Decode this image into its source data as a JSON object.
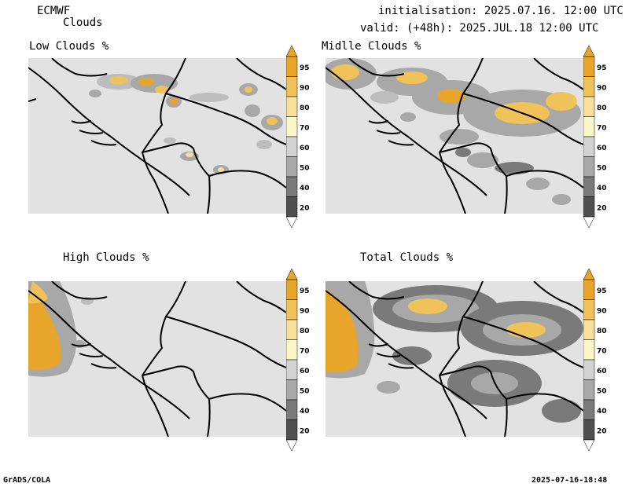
{
  "header": {
    "model": "ECMWF",
    "product": "Clouds",
    "initialisation": "initialisation: 2025.07.16. 12:00 UTC",
    "valid": "valid: (+48h): 2025.JUL.18 12:00 UTC"
  },
  "panels": [
    {
      "title": "Low Clouds %"
    },
    {
      "title": "Midlle Clouds %"
    },
    {
      "title": "High Clouds %"
    },
    {
      "title": "Total Clouds %"
    }
  ],
  "colorbar": {
    "labels": [
      "95",
      "90",
      "80",
      "70",
      "60",
      "50",
      "40",
      "20"
    ],
    "colors": [
      "#e8a52c",
      "#f0c35a",
      "#f6df9a",
      "#fbf8c8",
      "#d2d2d2",
      "#a8a8a8",
      "#7a7a7a",
      "#505050"
    ],
    "background": "#e2e2e2"
  },
  "footer": {
    "left": "GrADS/COLA",
    "right": "2025-07-16-18:48"
  }
}
